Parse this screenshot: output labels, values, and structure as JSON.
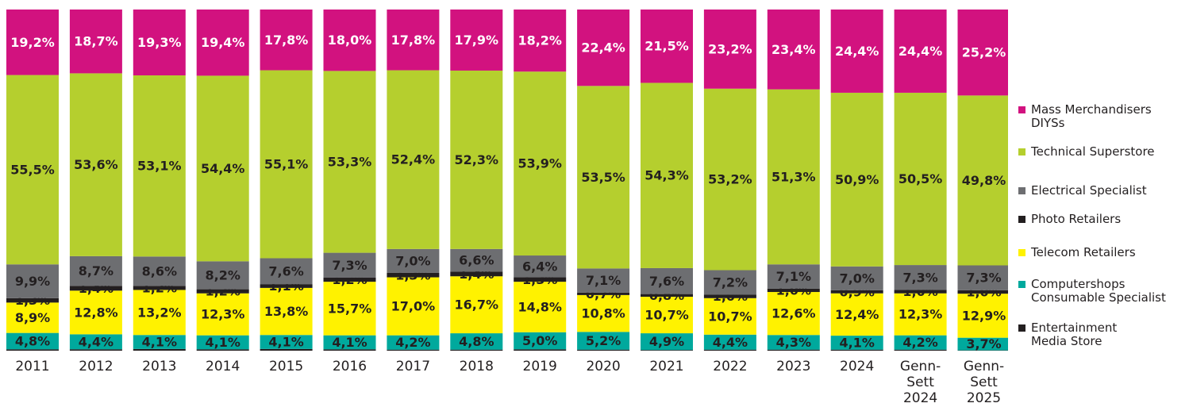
{
  "chart_data": {
    "type": "stacked_bar",
    "categories": [
      "2011",
      "2012",
      "2013",
      "2014",
      "2015",
      "2016",
      "2017",
      "2018",
      "2019",
      "2020",
      "2021",
      "2022",
      "2023",
      "2024",
      "Genn-\nSett\n2024",
      "Genn-\nSett\n2025"
    ],
    "ylim": [
      0,
      100
    ],
    "series": [
      {
        "name": "Entertainment\nMedia Store",
        "color": "#231f20",
        "values": [
          0.4,
          0.4,
          0.5,
          0.4,
          0.5,
          0.4,
          0.3,
          0.3,
          0.4,
          0.3,
          0.2,
          0.3,
          0.3,
          0.3,
          0.3,
          0.1
        ]
      },
      {
        "name": "Computershops\nConsumable Specialist",
        "color": "#00a99d",
        "values": [
          4.8,
          4.4,
          4.1,
          4.1,
          4.1,
          4.1,
          4.2,
          4.8,
          5.0,
          5.2,
          4.9,
          4.4,
          4.3,
          4.1,
          4.2,
          3.7
        ],
        "value_labels": [
          "4,8%",
          "4,4%",
          "4,1%",
          "4,1%",
          "4,1%",
          "4,1%",
          "4,2%",
          "4,8%",
          "5,0%",
          "5,2%",
          "4,9%",
          "4,4%",
          "4,3%",
          "4,1%",
          "4,2%",
          "3,7%"
        ]
      },
      {
        "name": "Telecom Retailers",
        "color": "#fff200",
        "values": [
          8.9,
          12.8,
          13.2,
          12.3,
          13.8,
          15.7,
          17.0,
          16.7,
          14.8,
          10.8,
          10.7,
          10.7,
          12.6,
          12.4,
          12.3,
          12.9
        ],
        "value_labels": [
          "8,9%",
          "12,8%",
          "13,2%",
          "12,3%",
          "13,8%",
          "15,7%",
          "17,0%",
          "16,7%",
          "14,8%",
          "10,8%",
          "10,7%",
          "10,7%",
          "12,6%",
          "12,4%",
          "12,3%",
          "12,9%"
        ]
      },
      {
        "name": "Photo Retailers",
        "color": "#231f20",
        "values": [
          1.3,
          1.4,
          1.2,
          1.2,
          1.1,
          1.2,
          1.3,
          1.4,
          1.3,
          0.7,
          0.8,
          1.0,
          1.0,
          0.9,
          1.0,
          1.0
        ],
        "value_labels": [
          "1,3%",
          "1,4%",
          "1,2%",
          "1,2%",
          "1,1%",
          "1,2%",
          "1,3%",
          "1,4%",
          "1,3%",
          "0,7%",
          "0,8%",
          "1,0%",
          "1,0%",
          "0,9%",
          "1,0%",
          "1,0%"
        ]
      },
      {
        "name": "Electrical Specialist",
        "color": "#6d6e71",
        "values": [
          9.9,
          8.7,
          8.6,
          8.2,
          7.6,
          7.3,
          7.0,
          6.6,
          6.4,
          7.1,
          7.6,
          7.2,
          7.1,
          7.0,
          7.3,
          7.3
        ],
        "value_labels": [
          "9,9%",
          "8,7%",
          "8,6%",
          "8,2%",
          "7,6%",
          "7,3%",
          "7,0%",
          "6,6%",
          "6,4%",
          "7,1%",
          "7,6%",
          "7,2%",
          "7,1%",
          "7,0%",
          "7,3%",
          "7,3%"
        ]
      },
      {
        "name": "Technical Superstore",
        "color": "#b5cf2e",
        "values": [
          55.5,
          53.6,
          53.1,
          54.4,
          55.1,
          53.3,
          52.4,
          52.3,
          53.9,
          53.5,
          54.3,
          53.2,
          51.3,
          50.9,
          50.5,
          49.8
        ],
        "value_labels": [
          "55,5%",
          "53,6%",
          "53,1%",
          "54,4%",
          "55,1%",
          "53,3%",
          "52,4%",
          "52,3%",
          "53,9%",
          "53,5%",
          "54,3%",
          "53,2%",
          "51,3%",
          "50,9%",
          "50,5%",
          "49,8%"
        ]
      },
      {
        "name": "Mass Merchandisers\nDIYSs",
        "color": "#d2127f",
        "values": [
          19.2,
          18.7,
          19.3,
          19.4,
          17.8,
          18.0,
          17.8,
          17.9,
          18.2,
          22.4,
          21.5,
          23.2,
          23.4,
          24.4,
          24.4,
          25.2
        ],
        "value_labels": [
          "19,2%",
          "18,7%",
          "19,3%",
          "19,4%",
          "17,8%",
          "18,0%",
          "17,8%",
          "17,9%",
          "18,2%",
          "22,4%",
          "21,5%",
          "23,2%",
          "23,4%",
          "24,4%",
          "24,4%",
          "25,2%"
        ]
      }
    ]
  }
}
